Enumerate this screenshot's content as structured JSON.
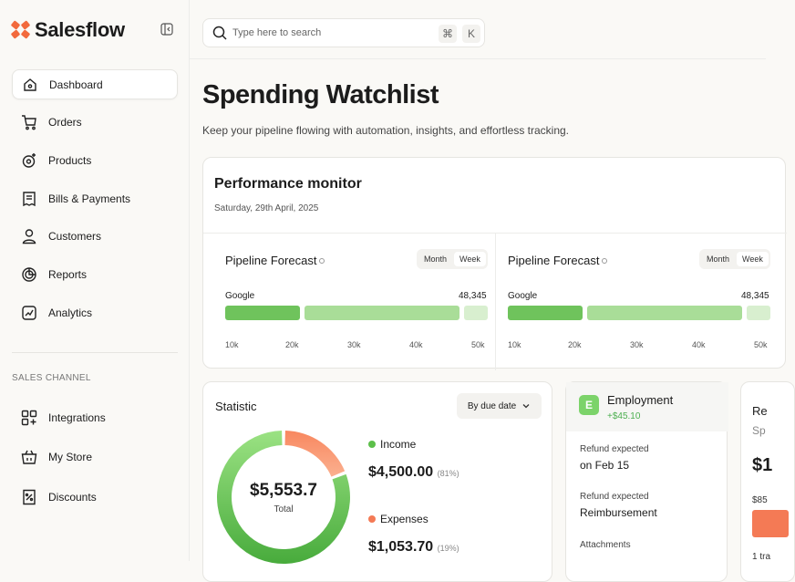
{
  "brand": {
    "name": "Salesflow",
    "accent": "#f26a3d"
  },
  "nav": {
    "items": [
      {
        "label": "Dashboard",
        "icon": "home-icon",
        "active": true
      },
      {
        "label": "Orders",
        "icon": "cart-icon"
      },
      {
        "label": "Products",
        "icon": "products-icon"
      },
      {
        "label": "Bills & Payments",
        "icon": "receipt-icon"
      },
      {
        "label": "Customers",
        "icon": "user-icon"
      },
      {
        "label": "Reports",
        "icon": "reports-icon"
      },
      {
        "label": "Analytics",
        "icon": "analytics-icon"
      }
    ],
    "section_label": "SALES CHANNEL",
    "channel_items": [
      {
        "label": "Integrations",
        "icon": "integrations-icon"
      },
      {
        "label": "My Store",
        "icon": "store-icon"
      },
      {
        "label": "Discounts",
        "icon": "discount-icon"
      }
    ]
  },
  "search": {
    "placeholder": "Type here to search",
    "shortcut_mod": "⌘",
    "shortcut_key": "K"
  },
  "page": {
    "title": "Spending Watchlist",
    "subtitle": "Keep your pipeline flowing with automation, insights, and effortless tracking."
  },
  "performance": {
    "title": "Performance monitor",
    "date": "Saturday, 29th April, 2025",
    "forecasts": [
      {
        "title": "Pipeline Forecast",
        "toggle": [
          "Month",
          "Week"
        ],
        "selected": "Week",
        "label": "Google",
        "value": "48,345",
        "ticks": [
          "10k",
          "20k",
          "30k",
          "40k",
          "50k"
        ]
      },
      {
        "title": "Pipeline Forecast",
        "toggle": [
          "Month",
          "Week"
        ],
        "selected": "Week",
        "label": "Google",
        "value": "48,345",
        "ticks": [
          "10k",
          "20k",
          "30k",
          "40k",
          "50k"
        ]
      }
    ],
    "bar_colors": [
      "#6fc35c",
      "#a9dd98",
      "#d8efcf"
    ]
  },
  "statistic": {
    "title": "Statistic",
    "filter": "By due date",
    "total_value": "$5,553.7",
    "total_label": "Total",
    "income": {
      "label": "Income",
      "amount": "$4,500.00",
      "pct": "(81%)",
      "color": "#5cbf4a",
      "fraction": 0.81
    },
    "expenses": {
      "label": "Expenses",
      "amount": "$1,053.70",
      "pct": "(19%)",
      "color": "#f47a55",
      "fraction": 0.19
    }
  },
  "employment": {
    "badge": "E",
    "title": "Employment",
    "amount": "+$45.10",
    "fields": [
      {
        "label": "Refund expected",
        "value": "on Feb 15"
      },
      {
        "label": "Refund expected",
        "value": "Reimbursement"
      },
      {
        "label": "Attachments",
        "value": ""
      }
    ]
  },
  "partial_card": {
    "title": "Re",
    "sub": "Sp",
    "big": "$1",
    "small": "$85",
    "foot": "1 tra"
  }
}
